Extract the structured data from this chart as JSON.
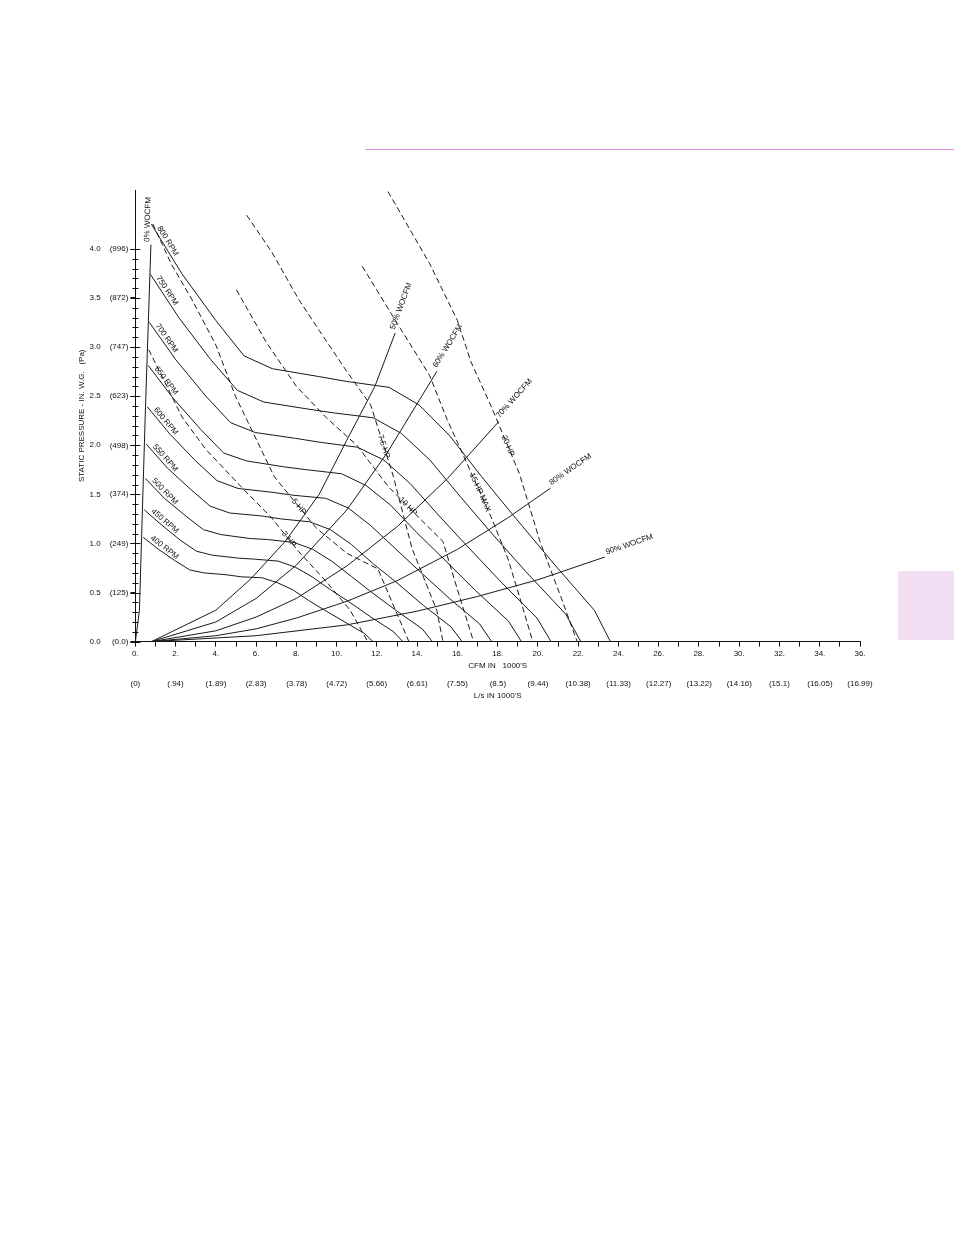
{
  "chart_data": {
    "type": "line",
    "xlabel": "CFM IN   1000'S",
    "ylabel": "STATIC PRESSURE - IN. W.G.   (Pa)",
    "x2label": "L/s IN 1000'S",
    "xlim": [
      0,
      36
    ],
    "ylim": [
      0,
      4.6
    ],
    "x2lim": [
      0,
      16.99
    ],
    "y2lim": [
      0,
      1146
    ],
    "xticks": [
      {
        "value": 0,
        "label": "0."
      },
      {
        "value": 1,
        "label": null
      },
      {
        "value": 2,
        "label": "2."
      },
      {
        "value": 3,
        "label": null
      },
      {
        "value": 4,
        "label": "4."
      },
      {
        "value": 5,
        "label": null
      },
      {
        "value": 6,
        "label": "6."
      },
      {
        "value": 7,
        "label": null
      },
      {
        "value": 8,
        "label": "8."
      },
      {
        "value": 9,
        "label": null
      },
      {
        "value": 10,
        "label": "10."
      },
      {
        "value": 11,
        "label": null
      },
      {
        "value": 12,
        "label": "12."
      },
      {
        "value": 13,
        "label": null
      },
      {
        "value": 14,
        "label": "14."
      },
      {
        "value": 15,
        "label": null
      },
      {
        "value": 16,
        "label": "16."
      },
      {
        "value": 17,
        "label": null
      },
      {
        "value": 18,
        "label": "18."
      },
      {
        "value": 19,
        "label": null
      },
      {
        "value": 20,
        "label": "20."
      },
      {
        "value": 21,
        "label": null
      },
      {
        "value": 22,
        "label": "22."
      },
      {
        "value": 23,
        "label": null
      },
      {
        "value": 24,
        "label": "24."
      },
      {
        "value": 25,
        "label": null
      },
      {
        "value": 26,
        "label": "26."
      },
      {
        "value": 27,
        "label": null
      },
      {
        "value": 28,
        "label": "28."
      },
      {
        "value": 29,
        "label": null
      },
      {
        "value": 30,
        "label": "30."
      },
      {
        "value": 31,
        "label": null
      },
      {
        "value": 32,
        "label": "32."
      },
      {
        "value": 33,
        "label": null
      },
      {
        "value": 34,
        "label": "34."
      },
      {
        "value": 35,
        "label": null
      },
      {
        "value": 36,
        "label": "36."
      }
    ],
    "yticks": [
      {
        "value": 0,
        "label": "0.0"
      },
      {
        "value": 0.1,
        "label": null
      },
      {
        "value": 0.2,
        "label": null
      },
      {
        "value": 0.3,
        "label": null
      },
      {
        "value": 0.4,
        "label": null
      },
      {
        "value": 0.5,
        "label": "0.5"
      },
      {
        "value": 0.6,
        "label": null
      },
      {
        "value": 0.7,
        "label": null
      },
      {
        "value": 0.8,
        "label": null
      },
      {
        "value": 0.9,
        "label": null
      },
      {
        "value": 1,
        "label": "1.0"
      },
      {
        "value": 1.1,
        "label": null
      },
      {
        "value": 1.2,
        "label": null
      },
      {
        "value": 1.3,
        "label": null
      },
      {
        "value": 1.4,
        "label": null
      },
      {
        "value": 1.5,
        "label": "1.5"
      },
      {
        "value": 1.6,
        "label": null
      },
      {
        "value": 1.7,
        "label": null
      },
      {
        "value": 1.8,
        "label": null
      },
      {
        "value": 1.9,
        "label": null
      },
      {
        "value": 2,
        "label": "2.0"
      },
      {
        "value": 2.1,
        "label": null
      },
      {
        "value": 2.2,
        "label": null
      },
      {
        "value": 2.3,
        "label": null
      },
      {
        "value": 2.4,
        "label": null
      },
      {
        "value": 2.5,
        "label": "2.5"
      },
      {
        "value": 2.6,
        "label": null
      },
      {
        "value": 2.7,
        "label": null
      },
      {
        "value": 2.8,
        "label": null
      },
      {
        "value": 2.9,
        "label": null
      },
      {
        "value": 3,
        "label": "3.0"
      },
      {
        "value": 3.1,
        "label": null
      },
      {
        "value": 3.2,
        "label": null
      },
      {
        "value": 3.3,
        "label": null
      },
      {
        "value": 3.4,
        "label": null
      },
      {
        "value": 3.5,
        "label": "3.5"
      },
      {
        "value": 3.6,
        "label": null
      },
      {
        "value": 3.7,
        "label": null
      },
      {
        "value": 3.8,
        "label": null
      },
      {
        "value": 3.9,
        "label": null
      },
      {
        "value": 4,
        "label": "4.0"
      }
    ],
    "x2ticks": [
      {
        "value": 0,
        "label": "(0)"
      },
      {
        "value": 0.94,
        "label": "(.94)"
      },
      {
        "value": 1.89,
        "label": "(1.89)"
      },
      {
        "value": 2.83,
        "label": "(2.83)"
      },
      {
        "value": 3.78,
        "label": "(3.78)"
      },
      {
        "value": 4.72,
        "label": "(4.72)"
      },
      {
        "value": 5.66,
        "label": "(5.66)"
      },
      {
        "value": 6.61,
        "label": "(6.61)"
      },
      {
        "value": 7.55,
        "label": "(7.55)"
      },
      {
        "value": 8.5,
        "label": "(8.5)"
      },
      {
        "value": 9.44,
        "label": "(9.44)"
      },
      {
        "value": 10.38,
        "label": "(10.38)"
      },
      {
        "value": 11.33,
        "label": "(11.33)"
      },
      {
        "value": 12.27,
        "label": "(12.27)"
      },
      {
        "value": 13.22,
        "label": "(13.22)"
      },
      {
        "value": 14.16,
        "label": "(14.16)"
      },
      {
        "value": 15.1,
        "label": "(15.1)"
      },
      {
        "value": 16.05,
        "label": "(16.05)"
      },
      {
        "value": 16.99,
        "label": "(16.99)"
      }
    ],
    "y2ticks": [
      {
        "value": 0,
        "label": "(0.0)"
      },
      {
        "value": 125,
        "label": "(125)"
      },
      {
        "value": 249,
        "label": "(249)"
      },
      {
        "value": 374,
        "label": "(374)"
      },
      {
        "value": 498,
        "label": "(498)"
      },
      {
        "value": 623,
        "label": "(623)"
      },
      {
        "value": 747,
        "label": "(747)"
      },
      {
        "value": 872,
        "label": "(872)"
      },
      {
        "value": 996,
        "label": "(996)"
      }
    ],
    "grid": false,
    "legend": false,
    "marker": "none",
    "series": [
      {
        "name": "800 RPM",
        "color": "#1a1a1a",
        "line_style": "solid",
        "x": [
          0.8,
          2.3,
          4.0,
          5.4,
          6.8,
          9.1,
          10.5,
          12.6,
          14.1,
          15.6,
          17.2,
          18.8,
          20.8,
          22.8,
          23.6
        ],
        "values": [
          4.25,
          3.75,
          3.27,
          2.91,
          2.78,
          2.7,
          2.65,
          2.59,
          2.41,
          2.1,
          1.68,
          1.28,
          0.79,
          0.32,
          0
        ]
      },
      {
        "name": "750 RPM",
        "color": "#1a1a1a",
        "line_style": "solid",
        "x": [
          0.75,
          2.16,
          3.75,
          5.06,
          6.38,
          8.53,
          9.84,
          11.81,
          13.22,
          14.63,
          16.13,
          17.63,
          19.5,
          21.38,
          22.13
        ],
        "values": [
          3.74,
          3.3,
          2.87,
          2.56,
          2.44,
          2.37,
          2.33,
          2.28,
          2.12,
          1.85,
          1.48,
          1.12,
          0.69,
          0.28,
          0
        ]
      },
      {
        "name": "700 RPM",
        "color": "#1a1a1a",
        "line_style": "solid",
        "x": [
          0.7,
          2.01,
          3.5,
          4.73,
          5.95,
          7.96,
          9.19,
          11.03,
          12.34,
          13.65,
          15.05,
          16.45,
          18.2,
          19.95,
          20.65
        ],
        "values": [
          3.25,
          2.87,
          2.5,
          2.23,
          2.13,
          2.07,
          2.03,
          1.98,
          1.85,
          1.61,
          1.29,
          0.98,
          0.6,
          0.24,
          0
        ]
      },
      {
        "name": "650 RPM",
        "color": "#1a1a1a",
        "line_style": "solid",
        "x": [
          0.65,
          1.87,
          3.25,
          4.39,
          5.53,
          7.39,
          8.53,
          10.24,
          11.46,
          12.68,
          13.98,
          15.28,
          16.9,
          18.53,
          19.18
        ],
        "values": [
          2.81,
          2.48,
          2.16,
          1.92,
          1.84,
          1.78,
          1.75,
          1.71,
          1.59,
          1.39,
          1.11,
          0.85,
          0.52,
          0.21,
          0
        ]
      },
      {
        "name": "600 RPM",
        "color": "#1a1a1a",
        "line_style": "solid",
        "x": [
          0.6,
          1.73,
          3.0,
          4.05,
          5.1,
          6.83,
          7.88,
          9.45,
          10.58,
          11.7,
          12.9,
          14.1,
          15.6,
          17.1,
          17.7
        ],
        "values": [
          2.39,
          2.11,
          1.84,
          1.64,
          1.56,
          1.52,
          1.49,
          1.46,
          1.36,
          1.18,
          0.95,
          0.72,
          0.44,
          0.18,
          0
        ]
      },
      {
        "name": "550 RPM",
        "color": "#1a1a1a",
        "line_style": "solid",
        "x": [
          0.55,
          1.58,
          2.75,
          3.71,
          4.68,
          6.26,
          7.22,
          8.66,
          9.69,
          10.73,
          11.83,
          12.93,
          14.3,
          15.68,
          16.23
        ],
        "values": [
          2.01,
          1.77,
          1.55,
          1.38,
          1.31,
          1.28,
          1.25,
          1.22,
          1.14,
          0.99,
          0.79,
          0.61,
          0.37,
          0.15,
          0
        ]
      },
      {
        "name": "500 RPM",
        "color": "#1a1a1a",
        "line_style": "solid",
        "x": [
          0.5,
          1.44,
          2.5,
          3.38,
          4.25,
          5.69,
          6.56,
          7.88,
          8.81,
          9.75,
          10.75,
          11.75,
          13.0,
          14.25,
          14.75
        ],
        "values": [
          1.66,
          1.46,
          1.28,
          1.14,
          1.09,
          1.05,
          1.04,
          1.01,
          0.94,
          0.82,
          0.66,
          0.5,
          0.31,
          0.13,
          0
        ]
      },
      {
        "name": "450 RPM",
        "color": "#1a1a1a",
        "line_style": "solid",
        "x": [
          0.45,
          1.29,
          2.25,
          3.04,
          3.83,
          5.12,
          5.91,
          7.09,
          7.93,
          8.78,
          9.68,
          10.58,
          11.7,
          12.83,
          13.28
        ],
        "values": [
          1.34,
          1.19,
          1.03,
          0.92,
          0.88,
          0.85,
          0.84,
          0.82,
          0.76,
          0.66,
          0.53,
          0.41,
          0.25,
          0.1,
          0
        ]
      },
      {
        "name": "400 RPM",
        "color": "#1a1a1a",
        "line_style": "solid",
        "x": [
          0.4,
          1.15,
          2.0,
          2.7,
          3.4,
          4.55,
          5.25,
          6.3,
          7.05,
          7.8,
          8.6,
          9.4,
          10.4,
          11.4,
          11.8
        ],
        "values": [
          1.06,
          0.94,
          0.82,
          0.73,
          0.7,
          0.68,
          0.66,
          0.65,
          0.6,
          0.53,
          0.42,
          0.32,
          0.2,
          0.08,
          0
        ]
      },
      {
        "name": "0% WOCFM",
        "color": "#1a1a1a",
        "line_style": "solid",
        "x": [
          0,
          0.2,
          0.5,
          0.77
        ],
        "values": [
          0,
          0.32,
          2.38,
          4.04
        ]
      },
      {
        "name": "50% WOCFM",
        "color": "#1a1a1a",
        "line_style": "solid",
        "x": [
          0.8,
          4.0,
          5.74,
          7.44,
          9.13,
          10.5,
          11.9,
          12.9
        ],
        "values": [
          0,
          0.32,
          0.64,
          1.02,
          1.5,
          2.05,
          2.6,
          3.14
        ]
      },
      {
        "name": "60% WOCFM",
        "color": "#1a1a1a",
        "line_style": "solid",
        "x": [
          0.8,
          4,
          6,
          8,
          10.5,
          12.5,
          14.97
        ],
        "values": [
          0,
          0.2,
          0.44,
          0.78,
          1.34,
          1.92,
          2.75
        ]
      },
      {
        "name": "70% WOCFM",
        "color": "#1a1a1a",
        "line_style": "solid",
        "x": [
          0.8,
          4,
          6,
          8,
          10.5,
          13,
          15.5,
          18.05
        ],
        "values": [
          0,
          0.11,
          0.25,
          0.44,
          0.77,
          1.17,
          1.66,
          2.24
        ]
      },
      {
        "name": "80% WOCFM",
        "color": "#1a1a1a",
        "line_style": "solid",
        "x": [
          0.8,
          4,
          6,
          8,
          10.5,
          13,
          16,
          18.5,
          20.6
        ],
        "values": [
          0,
          0.06,
          0.13,
          0.24,
          0.41,
          0.62,
          0.94,
          1.26,
          1.56
        ]
      },
      {
        "name": "90% WOCFM",
        "color": "#1a1a1a",
        "line_style": "solid",
        "x": [
          0.8,
          6,
          10.5,
          14,
          17,
          20,
          23.3
        ],
        "values": [
          0,
          0.06,
          0.17,
          0.31,
          0.46,
          0.63,
          0.86
        ]
      },
      {
        "name": "3 HP",
        "color": "#1a1a1a",
        "line_style": "dashed",
        "x": [
          0.67,
          2.31,
          3.49,
          5.38,
          6.77,
          8.1,
          9.49,
          10.67,
          11.54
        ],
        "values": [
          2.97,
          2.29,
          1.96,
          1.55,
          1.26,
          0.92,
          0.61,
          0.32,
          0
        ]
      },
      {
        "name": "5 HP",
        "color": "#1a1a1a",
        "line_style": "dashed",
        "x": [
          0.87,
          1.8,
          2.82,
          4.0,
          4.97,
          6.9,
          8.97,
          10.5,
          12.05,
          12.92,
          13.59
        ],
        "values": [
          4.25,
          3.84,
          3.48,
          3.02,
          2.5,
          1.68,
          1.16,
          0.9,
          0.74,
          0.32,
          0
        ]
      },
      {
        "name": "7.5 HP",
        "color": "#1a1a1a",
        "line_style": "dashed",
        "x": [
          5.54,
          6.77,
          8.1,
          9.13,
          10.51,
          11.69,
          12.82,
          13.74,
          14.97,
          15.28
        ],
        "values": [
          4.34,
          3.97,
          3.49,
          3.17,
          2.75,
          2.41,
          1.68,
          0.95,
          0.32,
          0
        ]
      },
      {
        "name": "10 HP",
        "color": "#1a1a1a",
        "line_style": "dashed",
        "x": [
          5.03,
          6.5,
          8.0,
          9.49,
          11.0,
          12.56,
          14.1,
          15.28,
          16.0,
          16.8
        ],
        "values": [
          3.58,
          3.05,
          2.6,
          2.28,
          2.0,
          1.58,
          1.26,
          1.02,
          0.53,
          0
        ]
      },
      {
        "name": "15 HP MAX",
        "color": "#1a1a1a",
        "line_style": "dashed",
        "x": [
          11.28,
          12.92,
          14.62,
          15.49,
          16.31,
          17.69,
          18.5,
          19.08,
          19.74
        ],
        "values": [
          3.82,
          3.27,
          2.71,
          2.26,
          1.89,
          1.26,
          0.85,
          0.46,
          0
        ]
      },
      {
        "name": "20 HP",
        "color": "#1a1a1a",
        "line_style": "dashed",
        "x": [
          12.56,
          14.62,
          16.0,
          16.67,
          17.69,
          19.08,
          20.1,
          21.13,
          21.95
        ],
        "values": [
          4.58,
          3.85,
          3.27,
          2.85,
          2.39,
          1.71,
          1.02,
          0.46,
          0
        ]
      }
    ]
  }
}
